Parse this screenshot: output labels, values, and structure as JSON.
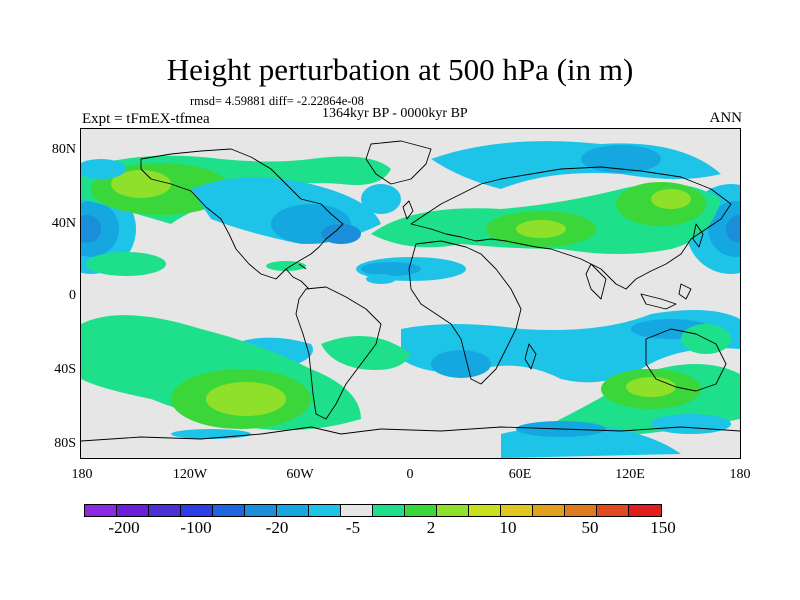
{
  "title": "Height perturbation at 500 hPa (in m)",
  "stats_line": "rmsd= 4.59881 diff= -2.22864e-08",
  "period": "1364kyr BP - 0000kyr BP",
  "experiment": "Expt = tFmEX-tfmea",
  "season": "ANN",
  "lat_labels": [
    "80N",
    "40N",
    "0",
    "40S",
    "80S"
  ],
  "lon_labels": [
    "180",
    "120W",
    "60W",
    "0",
    "60E",
    "120E",
    "180"
  ],
  "colorbar": {
    "colors": [
      "#8a2be2",
      "#6a1fd8",
      "#4e2fd6",
      "#2c3ee6",
      "#1d66e0",
      "#1a8ed8",
      "#15a8e0",
      "#1ec4e8",
      "#e6e6e6",
      "#1ee08a",
      "#3bd63a",
      "#8ee02a",
      "#c8e01e",
      "#e0c81e",
      "#e0a01e",
      "#e07a1e",
      "#e04a1e",
      "#e01e1e"
    ],
    "labels": [
      "-200",
      "-100",
      "-20",
      "-5",
      "2",
      "10",
      "50",
      "150"
    ]
  },
  "chart_data": {
    "type": "heatmap",
    "title": "Height perturbation at 500 hPa (in m)",
    "xlabel": "",
    "ylabel": "",
    "x_ticks": [
      "180",
      "120W",
      "60W",
      "0",
      "60E",
      "120E",
      "180"
    ],
    "y_ticks": [
      "80N",
      "40N",
      "0",
      "40S",
      "80S"
    ],
    "xlim": [
      -180,
      180
    ],
    "ylim": [
      -90,
      90
    ],
    "colorbar_labels": [
      "-200",
      "-100",
      "-20",
      "-5",
      "2",
      "10",
      "50",
      "150"
    ],
    "anomaly_regions": [
      {
        "lon": -170,
        "lat": 35,
        "value": -15
      },
      {
        "lon": -160,
        "lat": 60,
        "value": 5
      },
      {
        "lon": -120,
        "lat": 55,
        "value": 5
      },
      {
        "lon": -75,
        "lat": 42,
        "value": -10
      },
      {
        "lon": -30,
        "lat": 48,
        "value": -3
      },
      {
        "lon": -15,
        "lat": 15,
        "value": -3
      },
      {
        "lon": 55,
        "lat": 40,
        "value": 8
      },
      {
        "lon": 140,
        "lat": 50,
        "value": 12
      },
      {
        "lon": 110,
        "lat": 65,
        "value": -3
      },
      {
        "lon": 20,
        "lat": 70,
        "value": -3
      },
      {
        "lon": 170,
        "lat": 35,
        "value": -15
      },
      {
        "lon": -90,
        "lat": -55,
        "value": 12
      },
      {
        "lon": 110,
        "lat": -50,
        "value": 10
      },
      {
        "lon": 40,
        "lat": -35,
        "value": -3
      },
      {
        "lon": -35,
        "lat": -30,
        "value": 3
      },
      {
        "lon": 0,
        "lat": -60,
        "value": 3
      }
    ]
  }
}
